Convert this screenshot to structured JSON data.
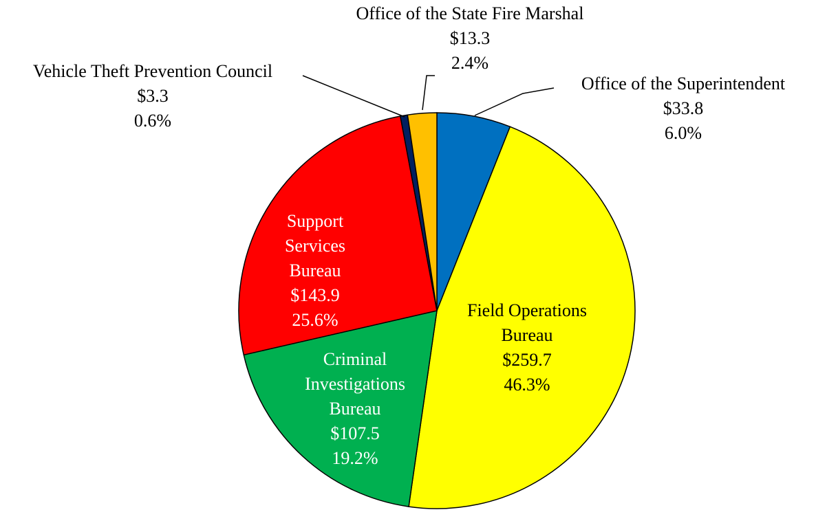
{
  "chart_data": {
    "type": "pie",
    "categories": [
      "Office of the Superintendent",
      "Field Operations Bureau",
      "Criminal Investigations Bureau",
      "Support Services Bureau",
      "Vehicle Theft Prevention Council",
      "Office of the State Fire Marshal"
    ],
    "values": [
      33.8,
      259.7,
      107.5,
      143.9,
      3.3,
      13.3
    ],
    "value_labels": [
      "$33.8",
      "$259.7",
      "$107.5",
      "$143.9",
      "$3.3",
      "$13.3"
    ],
    "percentages": [
      6.0,
      46.3,
      19.2,
      25.6,
      0.6,
      2.4
    ],
    "percentage_labels": [
      "6.0%",
      "46.3%",
      "19.2%",
      "25.6%",
      "0.6%",
      "2.4%"
    ],
    "colors": [
      "#0070c0",
      "#ffff00",
      "#00b050",
      "#ff0000",
      "#002060",
      "#ffc000"
    ]
  }
}
